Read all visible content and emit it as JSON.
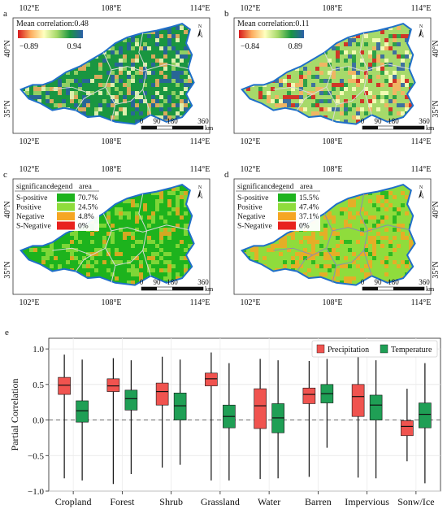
{
  "maps": [
    {
      "panel_label": "a",
      "top_ticks": [
        "102°E",
        "108°E",
        "114°E"
      ],
      "bottom_ticks": [
        "102°E",
        "108°E",
        "114°E"
      ],
      "left_ticks": [
        "40°N",
        "35°N"
      ],
      "mean_label": "Mean correlation:0.48",
      "range_min": "−0.89",
      "range_max": "0.94",
      "north": "N",
      "scale_ticks": [
        "0",
        "90",
        "180",
        "360"
      ],
      "scale_unit": "km",
      "colormap": [
        "#d7191c",
        "#fdae61",
        "#ffffbf",
        "#a6d96a",
        "#1a9641",
        "#2b5ea7"
      ]
    },
    {
      "panel_label": "b",
      "top_ticks": [
        "102°E",
        "108°E",
        "114°E"
      ],
      "bottom_ticks": [
        "102°E",
        "108°E",
        "114°E"
      ],
      "right_ticks": [
        "40°N",
        "35°N"
      ],
      "mean_label": "Mean correlation:0.11",
      "range_min": "−0.84",
      "range_max": "0.89",
      "north": "N",
      "scale_ticks": [
        "0",
        "90",
        "180",
        "360"
      ],
      "scale_unit": "km",
      "colormap": [
        "#d7191c",
        "#fdae61",
        "#ffffbf",
        "#a6d96a",
        "#1a9641",
        "#2b5ea7"
      ]
    },
    {
      "panel_label": "c",
      "top_ticks": [
        "102°E",
        "108°E",
        "114°E"
      ],
      "bottom_ticks": [
        "102°E",
        "108°E",
        "114°E"
      ],
      "left_ticks": [
        "40°N",
        "35°N"
      ],
      "north": "N",
      "scale_ticks": [
        "0",
        "90",
        "180",
        "360"
      ],
      "scale_unit": "km",
      "legend_header": [
        "significance",
        "legend",
        "area"
      ],
      "legend_rows": [
        {
          "name": "S-positive",
          "area": "70.7%",
          "color": "#1db31d"
        },
        {
          "name": "Positive",
          "area": "24.5%",
          "color": "#8fdc3c"
        },
        {
          "name": "Negative",
          "area": "4.8%",
          "color": "#f5a623"
        },
        {
          "name": "S-Negative",
          "area": "0%",
          "color": "#e8221e"
        }
      ]
    },
    {
      "panel_label": "d",
      "top_ticks": [
        "102°E",
        "108°E",
        "114°E"
      ],
      "bottom_ticks": [
        "102°E",
        "108°E",
        "114°E"
      ],
      "right_ticks": [
        "40°N",
        "35°N"
      ],
      "north": "N",
      "scale_ticks": [
        "0",
        "90",
        "180",
        "360"
      ],
      "scale_unit": "km",
      "legend_header": [
        "significance",
        "legend",
        "area"
      ],
      "legend_rows": [
        {
          "name": "S-positive",
          "area": "15.5%",
          "color": "#1db31d"
        },
        {
          "name": "Positive",
          "area": "47.4%",
          "color": "#8fdc3c"
        },
        {
          "name": "Negative",
          "area": "37.1%",
          "color": "#f5a623"
        },
        {
          "name": "S-Negative",
          "area": "0%",
          "color": "#e8221e"
        }
      ]
    }
  ],
  "chart_data": {
    "type": "box",
    "panel_label": "e",
    "ylabel": "Partial Correlation",
    "ylim": [
      -1.0,
      1.15
    ],
    "yticks": [
      -1.0,
      -0.5,
      0.0,
      0.5,
      1.0
    ],
    "ytick_labels": [
      "−1.0",
      "−0.5",
      "0.0",
      "0.5",
      "1.0"
    ],
    "grid": true,
    "zero_line": true,
    "legend_position": "top-right",
    "categories": [
      "Cropland",
      "Forest",
      "Shrub",
      "Grassland",
      "Water",
      "Barren",
      "Impervious",
      "Sonw/Ice"
    ],
    "series": [
      {
        "name": "Precipitation",
        "color": "#f0534f",
        "whisker_low": [
          -0.82,
          -0.9,
          -0.67,
          -0.85,
          -0.83,
          -0.8,
          -0.81,
          -0.58
        ],
        "q1": [
          0.36,
          0.4,
          0.21,
          0.48,
          -0.12,
          0.23,
          0.05,
          -0.22
        ],
        "median": [
          0.49,
          0.48,
          0.4,
          0.58,
          0.2,
          0.36,
          0.33,
          -0.09
        ],
        "q3": [
          0.6,
          0.58,
          0.52,
          0.66,
          0.44,
          0.45,
          0.5,
          -0.01
        ],
        "whisker_high": [
          0.92,
          0.87,
          0.89,
          0.95,
          0.86,
          0.83,
          0.9,
          0.44
        ]
      },
      {
        "name": "Temperature",
        "color": "#1f9f55",
        "whisker_low": [
          -0.85,
          -0.76,
          -0.63,
          -0.85,
          -0.82,
          -0.39,
          -0.82,
          -0.89
        ],
        "q1": [
          -0.03,
          0.14,
          0.0,
          -0.11,
          -0.18,
          0.24,
          0.0,
          -0.11
        ],
        "median": [
          0.13,
          0.3,
          0.2,
          0.05,
          0.03,
          0.37,
          0.21,
          0.08
        ],
        "q3": [
          0.27,
          0.42,
          0.38,
          0.21,
          0.23,
          0.5,
          0.35,
          0.24
        ],
        "whisker_high": [
          0.85,
          0.84,
          0.85,
          0.8,
          0.84,
          0.86,
          0.84,
          0.8
        ]
      }
    ]
  }
}
